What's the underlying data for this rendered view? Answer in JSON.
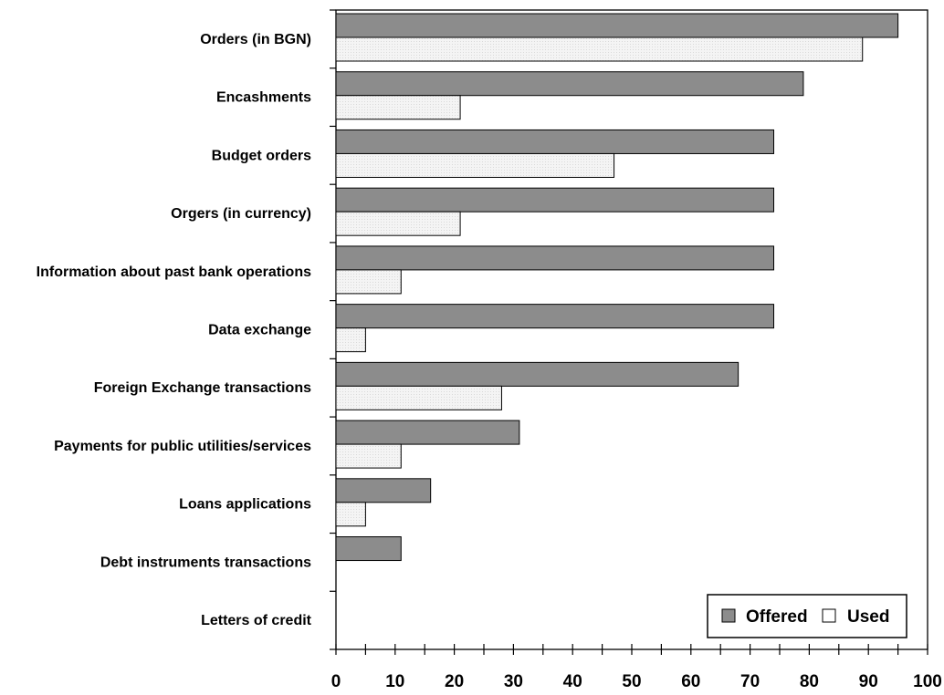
{
  "chart_data": {
    "type": "bar",
    "orientation": "horizontal",
    "categories": [
      "Orders (in BGN)",
      "Encashments",
      "Budget orders",
      "Orgers (in currency)",
      "Information about past bank operations",
      "Data exchange",
      "Foreign Exchange transactions",
      "Payments for public utilities/services",
      "Loans applications",
      "Debt instruments transactions",
      "Letters of credit"
    ],
    "series": [
      {
        "name": "Offered",
        "color": "#8c8c8c",
        "values": [
          95,
          79,
          74,
          74,
          74,
          74,
          68,
          31,
          16,
          11,
          0
        ]
      },
      {
        "name": "Used",
        "color": "#f2f2f2",
        "values": [
          89,
          21,
          47,
          21,
          11,
          5,
          28,
          11,
          5,
          0,
          0
        ]
      }
    ],
    "xlim": [
      0,
      100
    ],
    "xticks": [
      "0",
      "10",
      "20",
      "30",
      "40",
      "50",
      "60",
      "70",
      "80",
      "90",
      "100"
    ],
    "grid": false,
    "legend_position": "bottom-right",
    "title": "",
    "xlabel": "",
    "ylabel": ""
  }
}
